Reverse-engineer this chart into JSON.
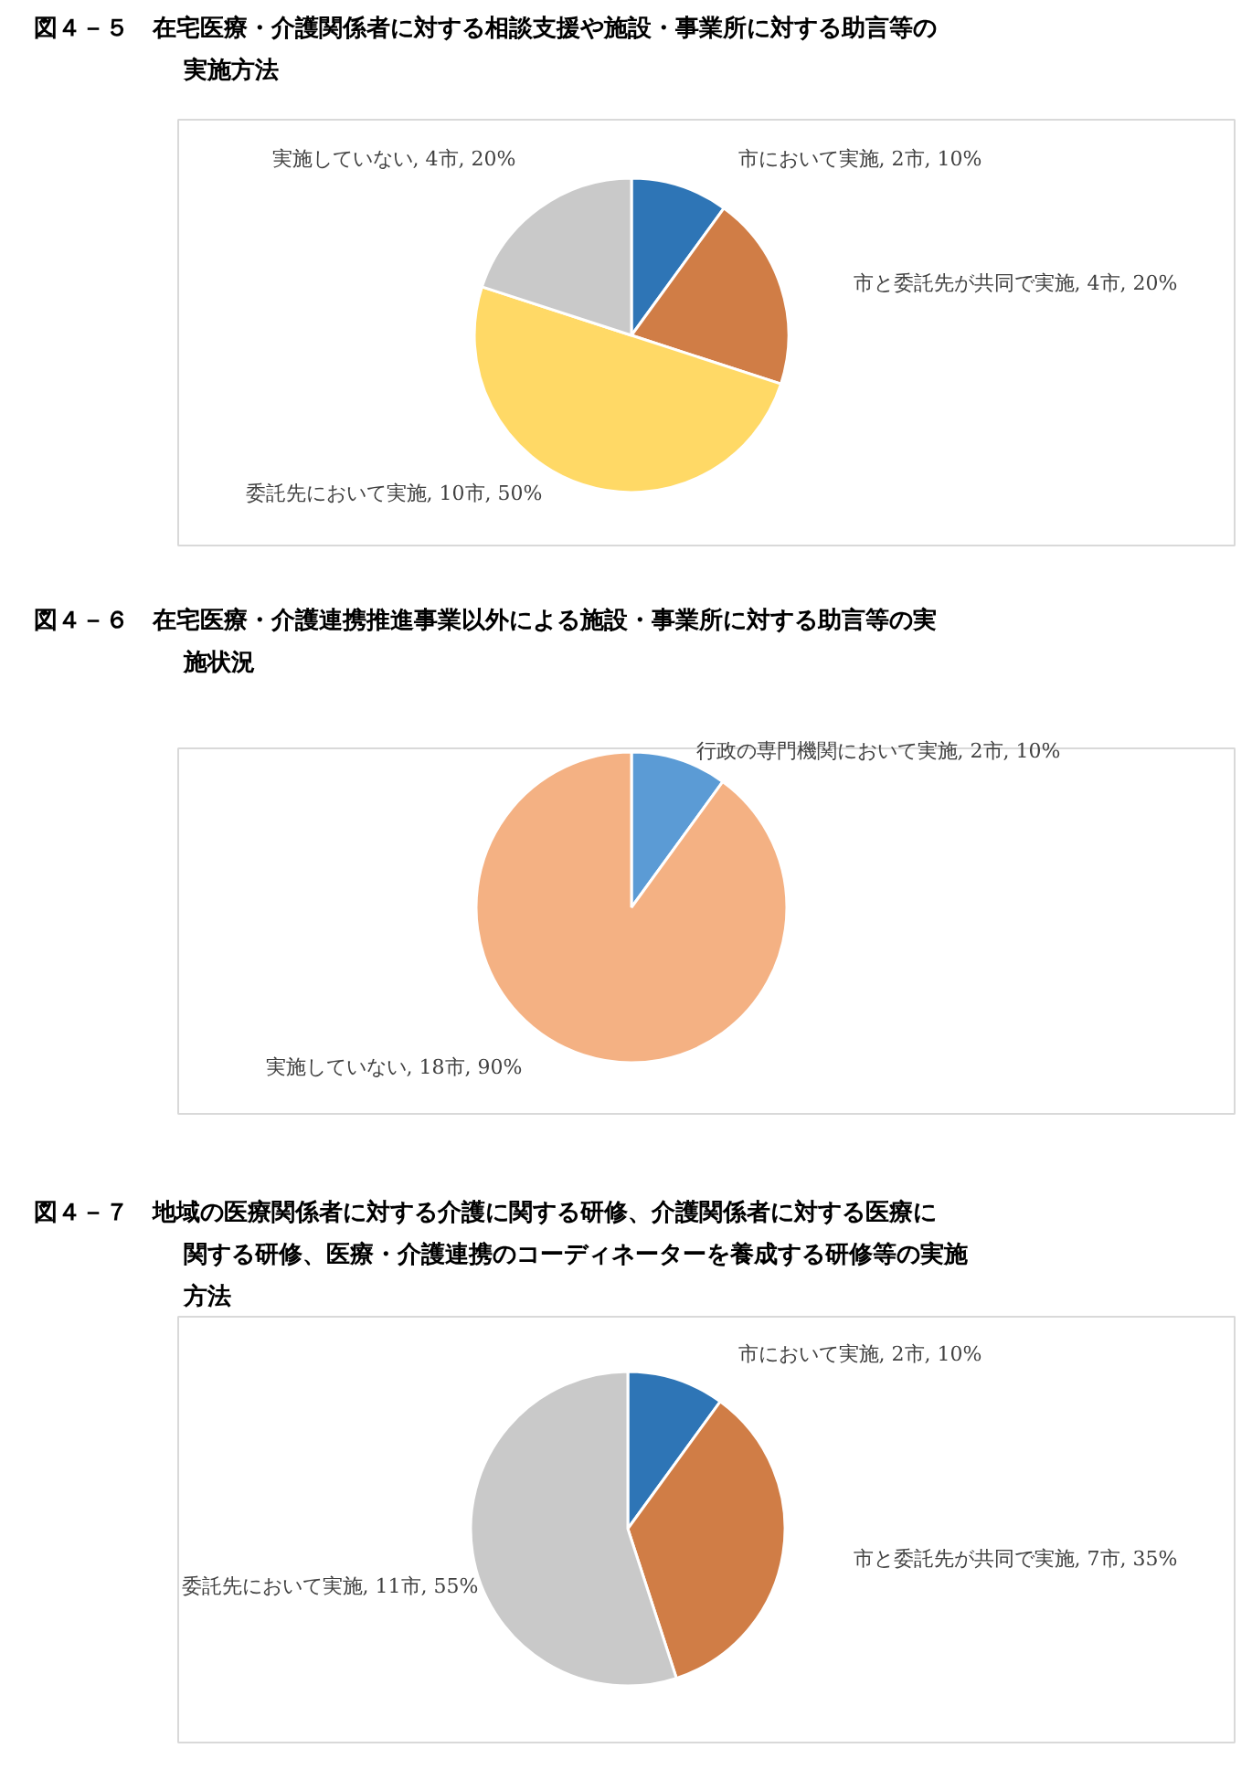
{
  "chart_data": [
    {
      "type": "pie",
      "title": "図４－５　在宅医療・介護関係者に対する相談支援や施設・事業所に対する助言等の実施方法",
      "categories": [
        "市において実施",
        "市と委託先が共同で実施",
        "委託先において実施",
        "実施していない"
      ],
      "values": [
        10,
        20,
        50,
        20
      ],
      "colors": [
        "#2e75b6",
        "#d07d46",
        "#ffd966",
        "#c9c9c9"
      ],
      "value_labels": [
        "2市, 10%",
        "4市, 20%",
        "10市, 50%",
        "4市, 20%"
      ]
    },
    {
      "type": "pie",
      "title": "図４－６　在宅医療・介護連携推進事業以外による施設・事業所に対する助言等の実施状況",
      "categories": [
        "行政の専門機関において実施",
        "実施していない"
      ],
      "values": [
        10,
        90
      ],
      "colors": [
        "#5b9bd5",
        "#f4b183"
      ],
      "value_labels": [
        "2市, 10%",
        "18市, 90%"
      ]
    },
    {
      "type": "pie",
      "title": "図４－７　地域の医療関係者に対する介護に関する研修、介護関係者に対する医療に関する研修、医療・介護連携のコーディネーターを養成する研修等の実施方法",
      "categories": [
        "市において実施",
        "市と委託先が共同で実施",
        "委託先において実施"
      ],
      "values": [
        10,
        35,
        55
      ],
      "colors": [
        "#2e75b6",
        "#d07d46",
        "#c9c9c9"
      ],
      "value_labels": [
        "2市, 10%",
        "7市, 35%",
        "11市, 55%"
      ]
    }
  ]
}
